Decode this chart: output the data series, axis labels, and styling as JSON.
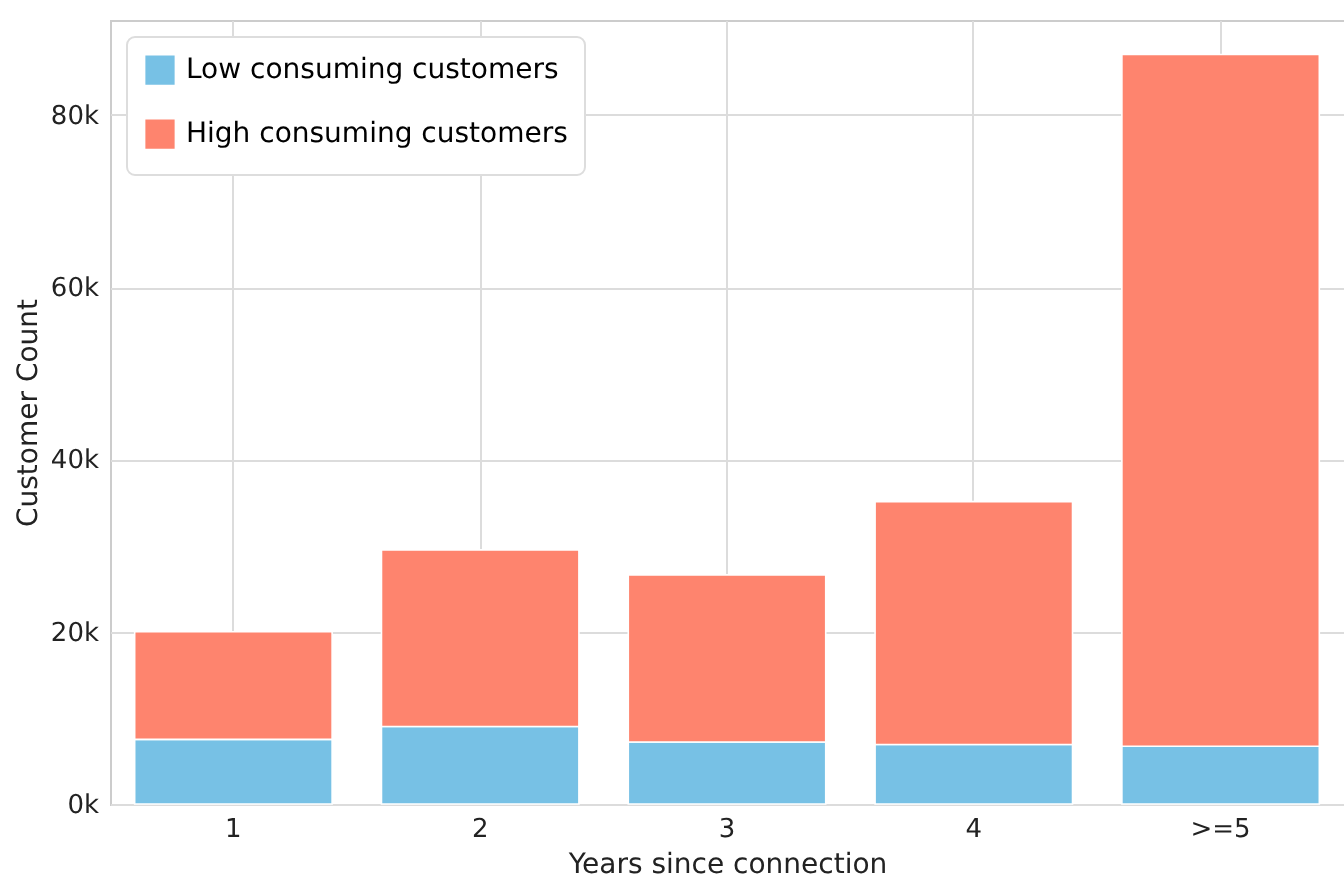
{
  "chart_data": {
    "type": "bar",
    "xlabel": "Years since connection",
    "ylabel": "Customer Count",
    "categories": [
      "1",
      "2",
      "3",
      "4",
      ">=5"
    ],
    "stacked": true,
    "series": [
      {
        "name": "Low consuming customers",
        "color": "#77c1e5",
        "values": [
          7500,
          9000,
          7200,
          6900,
          6700
        ]
      },
      {
        "name": "High consuming customers",
        "color": "#fe846e",
        "values": [
          12500,
          20500,
          19400,
          28200,
          80300
        ]
      }
    ],
    "ylim": [
      0,
      91000
    ],
    "yticks": [
      {
        "value": 0,
        "label": "0k"
      },
      {
        "value": 20000,
        "label": "20k"
      },
      {
        "value": 40000,
        "label": "40k"
      },
      {
        "value": 60000,
        "label": "60k"
      },
      {
        "value": 80000,
        "label": "80k"
      }
    ],
    "grid": true,
    "legend": "top left"
  }
}
